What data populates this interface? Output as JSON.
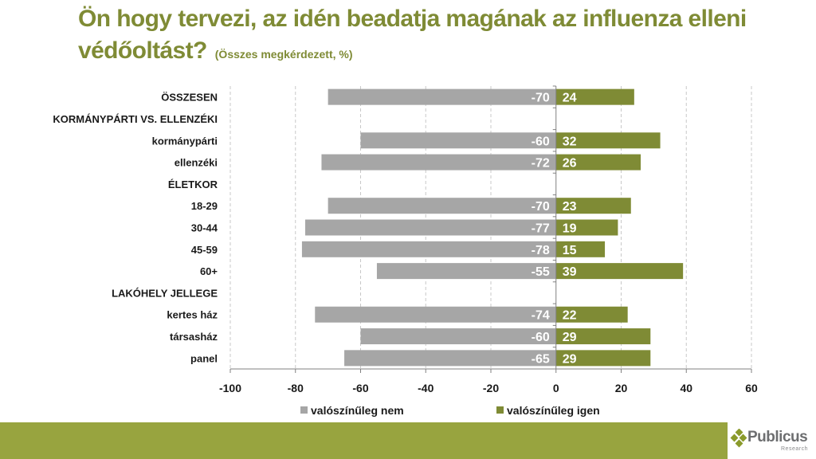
{
  "title": {
    "main_line1": "Ön hogy tervezi, az idén beadatja magának az influenza elleni",
    "main_line2": "védőoltást?",
    "subtitle": "(Összes megkérdezett, %)"
  },
  "brand": {
    "name": "Publicus",
    "sub": "Research",
    "band_color": "#98a43f"
  },
  "chart_data": {
    "type": "bar",
    "orientation": "horizontal",
    "stacked": "diverging",
    "title": "Ön hogy tervezi, az idén beadatja magának az influenza elleni védőoltást?",
    "subtitle": "(Összes megkérdezett, %)",
    "xlabel": "",
    "ylabel": "",
    "xlim": [
      -100,
      60
    ],
    "x_ticks": [
      "-100",
      "-80",
      "-60",
      "-40",
      "-20",
      "0",
      "20",
      "40",
      "60"
    ],
    "x_tick_values": [
      -100,
      -80,
      -60,
      -40,
      -20,
      0,
      20,
      40,
      60
    ],
    "grid": "vertical dashed",
    "legend_position": "bottom",
    "categories": [
      "ÖSSZESEN",
      "KORMÁNYPÁRTI VS. ELLENZÉKI",
      "kormánypárti",
      "ellenzéki",
      "ÉLETKOR",
      "18-29",
      "30-44",
      "45-59",
      "60+",
      "LAKÓHELY JELLEGE",
      "kertes ház",
      "társasház",
      "panel"
    ],
    "series": [
      {
        "name": "valószínűleg nem",
        "color": "#a6a6a6",
        "values": [
          -70,
          null,
          -60,
          -72,
          null,
          -70,
          -77,
          -78,
          -55,
          null,
          -74,
          -60,
          -65
        ],
        "labels": [
          "-70",
          "",
          "-60",
          "-72",
          "",
          "-70",
          "-77",
          "-78",
          "-55",
          "",
          "-74",
          "-60",
          "-65"
        ]
      },
      {
        "name": "valószínűleg igen",
        "color": "#7f8b35",
        "values": [
          24,
          null,
          32,
          26,
          null,
          23,
          19,
          15,
          39,
          null,
          22,
          29,
          29
        ],
        "labels": [
          "24",
          "",
          "32",
          "26",
          "",
          "23",
          "19",
          "15",
          "39",
          "",
          "22",
          "29",
          "29"
        ]
      }
    ]
  }
}
